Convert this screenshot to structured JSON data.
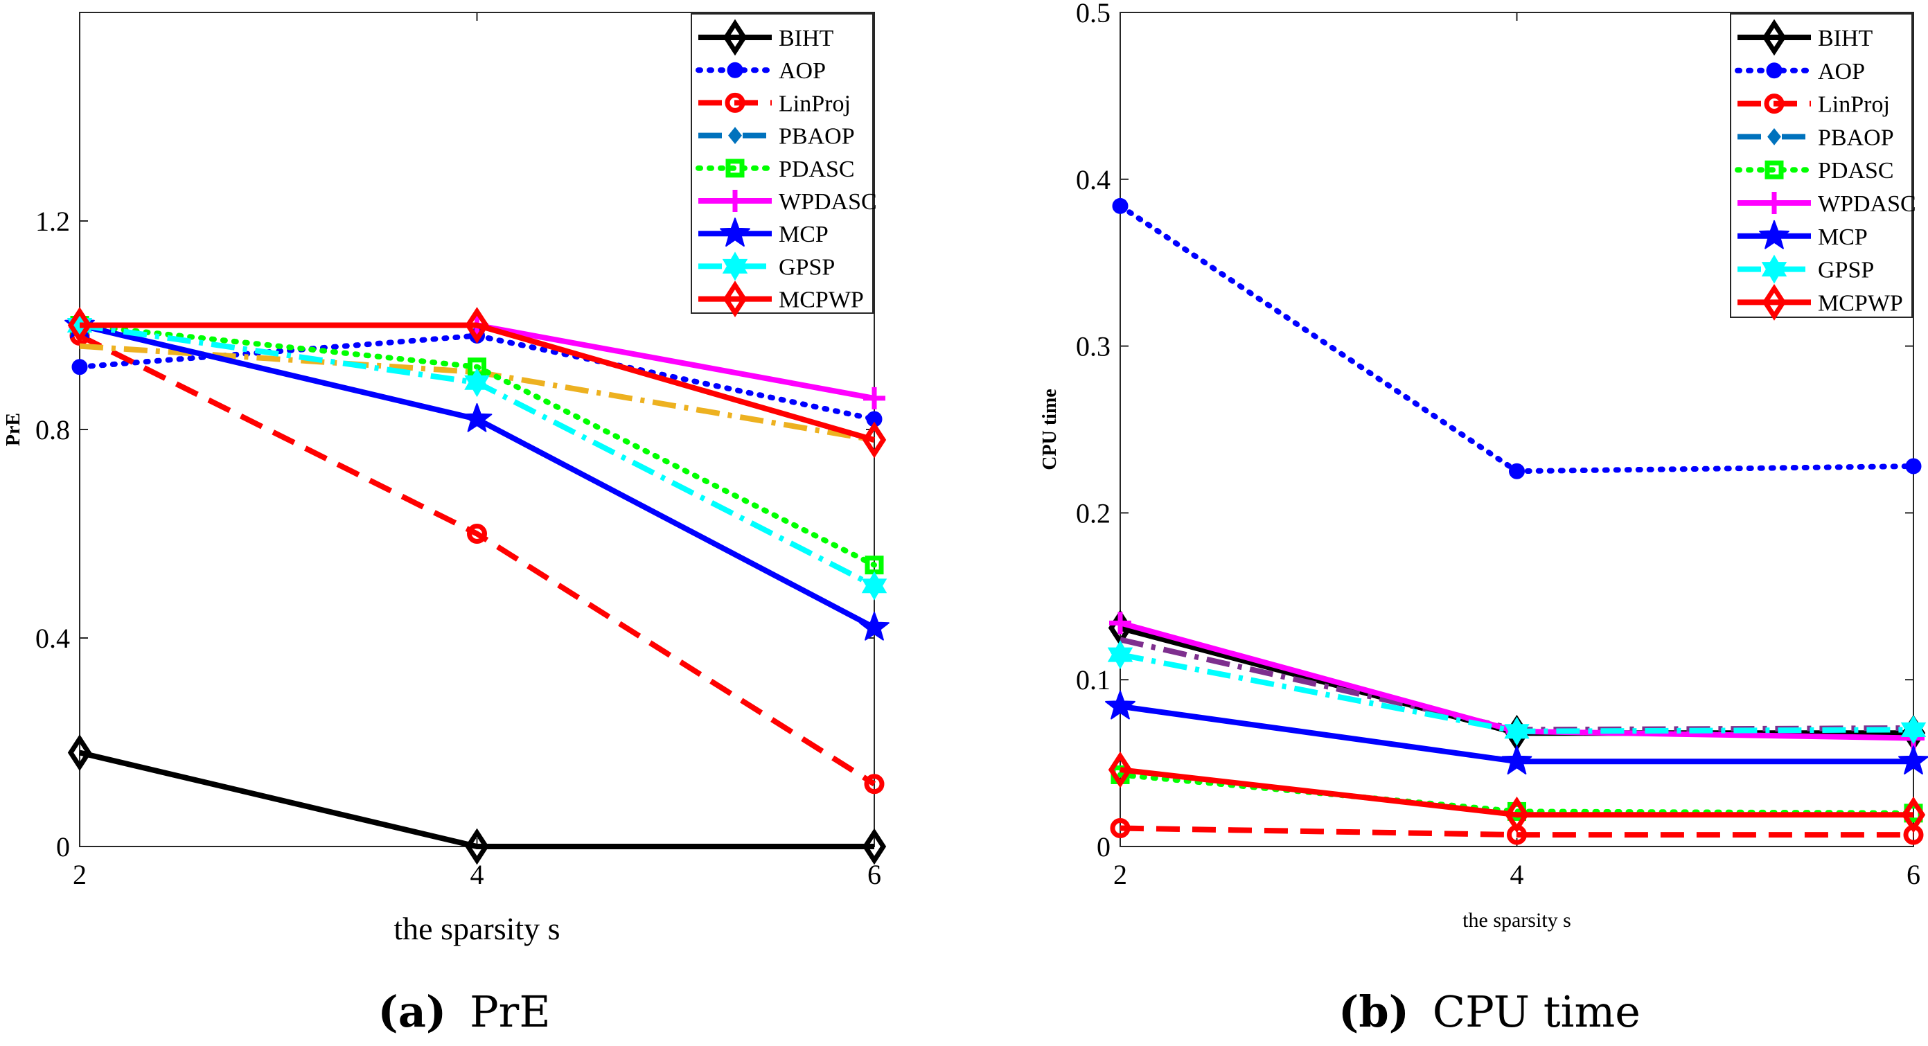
{
  "chart_data": [
    {
      "type": "line",
      "title": "",
      "xlabel": "the sparsity s",
      "ylabel": "PrE",
      "x": [
        2,
        4,
        6
      ],
      "xticks": [
        2,
        4,
        6
      ],
      "xtick_labels": [
        "2",
        "4",
        "6"
      ],
      "yticks": [
        0,
        0.4,
        0.8,
        1.2
      ],
      "ytick_labels": [
        "0",
        "0.4",
        "0.8",
        "1.2"
      ],
      "xlim": [
        2,
        6
      ],
      "ylim": [
        0,
        1.6
      ],
      "grid": false,
      "legend_position": "top-right",
      "series": [
        {
          "name": "BIHT",
          "values": [
            0.18,
            0.0,
            0.0
          ],
          "color": "#000000",
          "dash": "solid",
          "marker": "diamond"
        },
        {
          "name": "AOP",
          "values": [
            0.92,
            0.98,
            0.82
          ],
          "color": "#0000ff",
          "dash": "dot",
          "marker": "circle-filled"
        },
        {
          "name": "LinProj",
          "values": [
            0.98,
            0.6,
            0.12
          ],
          "color": "#ff0000",
          "dash": "dash",
          "marker": "circle-open"
        },
        {
          "name": "PBAOP",
          "values": [
            0.96,
            0.91,
            0.78
          ],
          "color": "#edb120",
          "dash": "dashdot",
          "marker": "none",
          "legend_color": "#0072bd",
          "in_legend": true
        },
        {
          "name": "PDASC",
          "values": [
            1.0,
            0.92,
            0.54
          ],
          "color": "#00ff00",
          "dash": "dot",
          "marker": "square"
        },
        {
          "name": "WPDASC",
          "values": [
            1.0,
            1.0,
            0.86
          ],
          "color": "#ff00ff",
          "dash": "solid",
          "marker": "plus"
        },
        {
          "name": "MCP",
          "values": [
            1.0,
            0.82,
            0.42
          ],
          "color": "#0000ff",
          "dash": "solid",
          "marker": "star"
        },
        {
          "name": "GPSP",
          "values": [
            1.0,
            0.89,
            0.5
          ],
          "color": "#00ffff",
          "dash": "dashdot",
          "marker": "hexagram"
        },
        {
          "name": "MCPWP",
          "values": [
            1.0,
            1.0,
            0.78
          ],
          "color": "#ff0000",
          "dash": "solid",
          "marker": "diamond"
        }
      ]
    },
    {
      "type": "line",
      "title": "",
      "xlabel": "the sparsity s",
      "ylabel": "CPU time",
      "x": [
        2,
        4,
        6
      ],
      "xticks": [
        2,
        4,
        6
      ],
      "xtick_labels": [
        "2",
        "4",
        "6"
      ],
      "yticks": [
        0,
        0.1,
        0.2,
        0.3,
        0.4,
        0.5
      ],
      "ytick_labels": [
        "0",
        "0.1",
        "0.2",
        "0.3",
        "0.4",
        "0.5"
      ],
      "xlim": [
        2,
        6
      ],
      "ylim": [
        0,
        0.5
      ],
      "grid": false,
      "legend_position": "top-right",
      "series": [
        {
          "name": "BIHT",
          "values": [
            0.131,
            0.068,
            0.068
          ],
          "color": "#000000",
          "dash": "solid",
          "marker": "diamond"
        },
        {
          "name": "AOP",
          "values": [
            0.384,
            0.225,
            0.228
          ],
          "color": "#0000ff",
          "dash": "dot",
          "marker": "circle-filled"
        },
        {
          "name": "LinProj",
          "values": [
            0.011,
            0.007,
            0.007
          ],
          "color": "#ff0000",
          "dash": "dash",
          "marker": "circle-open"
        },
        {
          "name": "PBAOP",
          "values": [
            0.124,
            0.07,
            0.071
          ],
          "color": "#7e2f8e",
          "dash": "dashdot",
          "marker": "none",
          "legend_color": "#0072bd",
          "in_legend": true
        },
        {
          "name": "PDASC",
          "values": [
            0.043,
            0.021,
            0.02
          ],
          "color": "#00ff00",
          "dash": "dot",
          "marker": "square"
        },
        {
          "name": "WPDASC",
          "values": [
            0.134,
            0.069,
            0.065
          ],
          "color": "#ff00ff",
          "dash": "solid",
          "marker": "plus"
        },
        {
          "name": "MCP",
          "values": [
            0.084,
            0.051,
            0.051
          ],
          "color": "#0000ff",
          "dash": "solid",
          "marker": "star"
        },
        {
          "name": "GPSP",
          "values": [
            0.115,
            0.069,
            0.07
          ],
          "color": "#00ffff",
          "dash": "dashdot",
          "marker": "hexagram"
        },
        {
          "name": "MCPWP",
          "values": [
            0.046,
            0.019,
            0.019
          ],
          "color": "#ff0000",
          "dash": "solid",
          "marker": "diamond"
        }
      ]
    }
  ],
  "captions": [
    {
      "letter": "(a)",
      "text": "PrE"
    },
    {
      "letter": "(b)",
      "text": "CPU time"
    }
  ]
}
